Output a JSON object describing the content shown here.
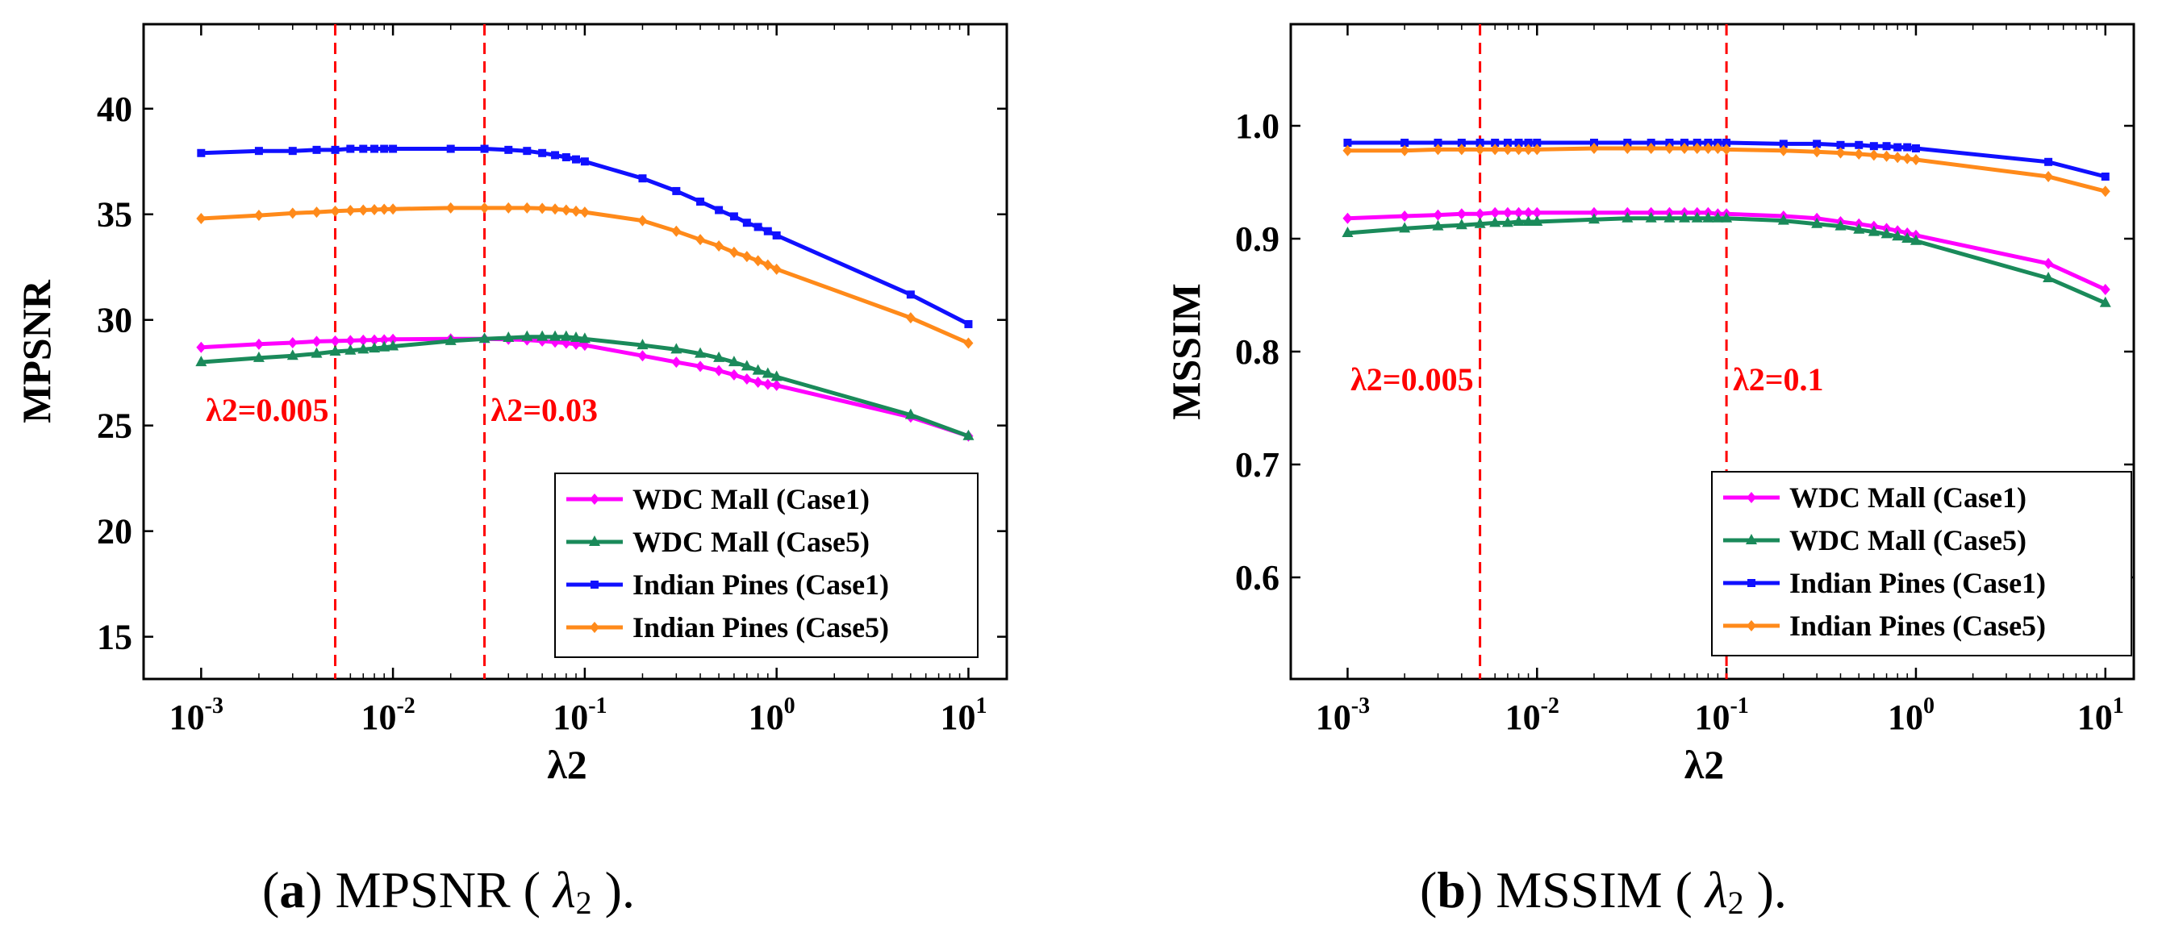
{
  "chart_data": [
    {
      "type": "line",
      "xscale": "log",
      "xlabel": "λ2",
      "ylabel": "MPSNR",
      "ylim": [
        13,
        44
      ],
      "xlim_log10": [
        -3.3,
        1.2
      ],
      "xticks": [
        {
          "base": "10",
          "exp": "-3",
          "value": 0.001
        },
        {
          "base": "10",
          "exp": "-2",
          "value": 0.01
        },
        {
          "base": "10",
          "exp": "-1",
          "value": 0.1
        },
        {
          "base": "10",
          "exp": "0",
          "value": 1
        },
        {
          "base": "10",
          "exp": "1",
          "value": 10
        }
      ],
      "yticks": [
        {
          "label": "15",
          "value": 15
        },
        {
          "label": "20",
          "value": 20
        },
        {
          "label": "25",
          "value": 25
        },
        {
          "label": "30",
          "value": 30
        },
        {
          "label": "35",
          "value": 35
        },
        {
          "label": "40",
          "value": 40
        }
      ],
      "x": [
        0.001,
        0.002,
        0.003,
        0.004,
        0.005,
        0.006,
        0.007,
        0.008,
        0.009,
        0.01,
        0.02,
        0.03,
        0.04,
        0.05,
        0.06,
        0.07,
        0.08,
        0.09,
        0.1,
        0.2,
        0.3,
        0.4,
        0.5,
        0.6,
        0.7,
        0.8,
        0.9,
        1,
        5,
        10
      ],
      "series": [
        {
          "name": "WDC Mall (Case1)",
          "color": "#ff00ff",
          "marker": "diamond",
          "values": [
            28.7,
            28.85,
            28.92,
            28.98,
            29.0,
            29.02,
            29.04,
            29.05,
            29.06,
            29.08,
            29.1,
            29.1,
            29.08,
            29.05,
            29.0,
            28.95,
            28.9,
            28.85,
            28.8,
            28.3,
            28.0,
            27.8,
            27.6,
            27.4,
            27.2,
            27.05,
            26.95,
            26.9,
            25.4,
            24.5
          ]
        },
        {
          "name": "WDC Mall (Case5)",
          "color": "#1a8a5a",
          "marker": "triangle",
          "values": [
            28.0,
            28.2,
            28.3,
            28.4,
            28.5,
            28.55,
            28.6,
            28.65,
            28.7,
            28.75,
            29.0,
            29.1,
            29.15,
            29.2,
            29.2,
            29.2,
            29.2,
            29.15,
            29.1,
            28.8,
            28.6,
            28.4,
            28.2,
            28.0,
            27.8,
            27.6,
            27.45,
            27.3,
            25.5,
            24.5
          ]
        },
        {
          "name": "Indian Pines (Case1)",
          "color": "#1010ff",
          "marker": "square",
          "values": [
            37.9,
            38.0,
            38.0,
            38.05,
            38.05,
            38.1,
            38.1,
            38.1,
            38.1,
            38.1,
            38.1,
            38.1,
            38.05,
            38.0,
            37.9,
            37.8,
            37.7,
            37.6,
            37.5,
            36.7,
            36.1,
            35.6,
            35.2,
            34.9,
            34.6,
            34.4,
            34.2,
            34.0,
            31.2,
            29.8
          ]
        },
        {
          "name": "Indian Pines (Case5)",
          "color": "#ff8a1a",
          "marker": "diamond",
          "values": [
            34.8,
            34.95,
            35.05,
            35.1,
            35.15,
            35.18,
            35.2,
            35.22,
            35.24,
            35.25,
            35.3,
            35.3,
            35.3,
            35.3,
            35.28,
            35.25,
            35.2,
            35.15,
            35.1,
            34.7,
            34.2,
            33.8,
            33.5,
            33.2,
            33.0,
            32.8,
            32.6,
            32.4,
            30.1,
            28.9
          ]
        }
      ],
      "annotations": [
        {
          "x": 0.005,
          "label": "λ2=0.005",
          "label_side": "left"
        },
        {
          "x": 0.03,
          "label": "λ2=0.03",
          "label_side": "right"
        }
      ],
      "legend": "bottom-right",
      "caption": {
        "letter": "a",
        "text": " MPSNR ( ",
        "symbol": "λ",
        "sub": "2",
        "tail": " )."
      }
    },
    {
      "type": "line",
      "xscale": "log",
      "xlabel": "λ2",
      "ylabel": "MSSIM",
      "ylim": [
        0.51,
        1.09
      ],
      "xlim_log10": [
        -3.3,
        1.15
      ],
      "xticks": [
        {
          "base": "10",
          "exp": "-3",
          "value": 0.001
        },
        {
          "base": "10",
          "exp": "-2",
          "value": 0.01
        },
        {
          "base": "10",
          "exp": "-1",
          "value": 0.1
        },
        {
          "base": "10",
          "exp": "0",
          "value": 1
        },
        {
          "base": "10",
          "exp": "1",
          "value": 10
        }
      ],
      "yticks": [
        {
          "label": "0.6",
          "value": 0.6
        },
        {
          "label": "0.7",
          "value": 0.7
        },
        {
          "label": "0.8",
          "value": 0.8
        },
        {
          "label": "0.9",
          "value": 0.9
        },
        {
          "label": "1.0",
          "value": 1.0
        }
      ],
      "x": [
        0.001,
        0.002,
        0.003,
        0.004,
        0.005,
        0.006,
        0.007,
        0.008,
        0.009,
        0.01,
        0.02,
        0.03,
        0.04,
        0.05,
        0.06,
        0.07,
        0.08,
        0.09,
        0.1,
        0.2,
        0.3,
        0.4,
        0.5,
        0.6,
        0.7,
        0.8,
        0.9,
        1,
        5,
        10
      ],
      "series": [
        {
          "name": "WDC Mall (Case1)",
          "color": "#ff00ff",
          "marker": "diamond",
          "values": [
            0.918,
            0.92,
            0.921,
            0.922,
            0.922,
            0.923,
            0.923,
            0.923,
            0.923,
            0.923,
            0.923,
            0.923,
            0.923,
            0.923,
            0.923,
            0.923,
            0.923,
            0.922,
            0.922,
            0.92,
            0.918,
            0.915,
            0.913,
            0.911,
            0.909,
            0.907,
            0.905,
            0.903,
            0.878,
            0.855
          ]
        },
        {
          "name": "WDC Mall (Case5)",
          "color": "#1a8a5a",
          "marker": "triangle",
          "values": [
            0.905,
            0.909,
            0.911,
            0.912,
            0.913,
            0.914,
            0.914,
            0.915,
            0.915,
            0.915,
            0.917,
            0.918,
            0.918,
            0.918,
            0.918,
            0.918,
            0.918,
            0.918,
            0.918,
            0.916,
            0.913,
            0.911,
            0.908,
            0.906,
            0.904,
            0.902,
            0.9,
            0.898,
            0.865,
            0.843
          ]
        },
        {
          "name": "Indian Pines (Case1)",
          "color": "#1010ff",
          "marker": "square",
          "values": [
            0.985,
            0.985,
            0.985,
            0.985,
            0.985,
            0.985,
            0.985,
            0.985,
            0.985,
            0.985,
            0.985,
            0.985,
            0.985,
            0.985,
            0.985,
            0.985,
            0.985,
            0.985,
            0.985,
            0.984,
            0.984,
            0.983,
            0.983,
            0.982,
            0.982,
            0.981,
            0.981,
            0.98,
            0.968,
            0.955
          ]
        },
        {
          "name": "Indian Pines (Case5)",
          "color": "#ff8a1a",
          "marker": "diamond",
          "values": [
            0.978,
            0.978,
            0.979,
            0.979,
            0.979,
            0.979,
            0.979,
            0.979,
            0.979,
            0.979,
            0.98,
            0.98,
            0.98,
            0.98,
            0.98,
            0.98,
            0.98,
            0.98,
            0.979,
            0.978,
            0.977,
            0.976,
            0.975,
            0.974,
            0.973,
            0.972,
            0.971,
            0.97,
            0.955,
            0.942
          ]
        }
      ],
      "annotations": [
        {
          "x": 0.005,
          "label": "λ2=0.005",
          "label_side": "left"
        },
        {
          "x": 0.1,
          "label": "λ2=0.1",
          "label_side": "right"
        }
      ],
      "legend": "bottom-right",
      "caption": {
        "letter": "b",
        "text": " MSSIM ( ",
        "symbol": "λ",
        "sub": "2",
        "tail": " )."
      }
    }
  ],
  "colors": {
    "annotation": "#ff0000",
    "axis": "#000000"
  }
}
